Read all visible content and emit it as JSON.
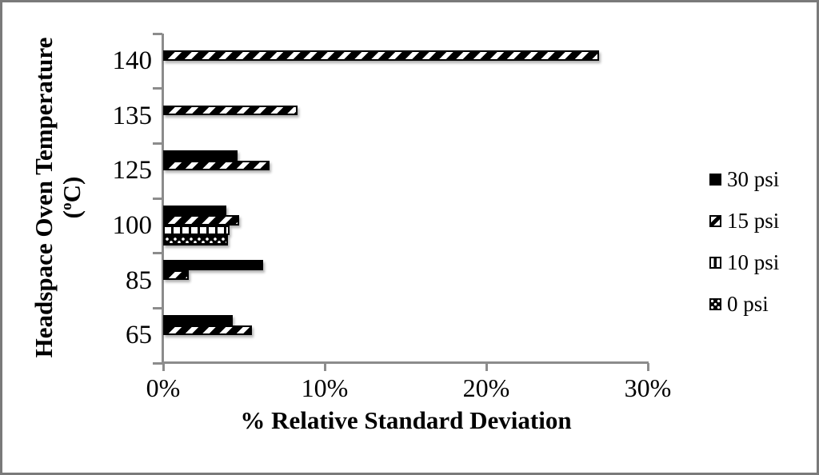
{
  "chart_data": {
    "type": "bar",
    "orientation": "horizontal",
    "title": "",
    "xlabel": "% Relative Standard Deviation",
    "ylabel": "Headspace Oven Temperature (oC)",
    "ylabel_line1": "Headspace Oven Temperature",
    "ylabel_unit": {
      "open": "(",
      "sup": "o",
      "close": "C)"
    },
    "categories": [
      "140",
      "135",
      "125",
      "100",
      "85",
      "65"
    ],
    "series": [
      {
        "name": "30 psi",
        "pattern": "solid",
        "values": [
          0,
          0,
          4.6,
          3.9,
          6.2,
          4.3
        ]
      },
      {
        "name": "15 psi",
        "pattern": "diagonal",
        "values": [
          27.0,
          8.3,
          6.6,
          4.7,
          1.6,
          5.5
        ]
      },
      {
        "name": "10 psi",
        "pattern": "vertical",
        "values": [
          0,
          0,
          0,
          4.1,
          0,
          0
        ]
      },
      {
        "name": "0 psi",
        "pattern": "dots",
        "values": [
          0,
          0,
          0,
          4.0,
          0,
          0
        ]
      }
    ],
    "x_ticks": [
      {
        "label": "0%",
        "value": 0
      },
      {
        "label": "10%",
        "value": 10
      },
      {
        "label": "20%",
        "value": 20
      },
      {
        "label": "30%",
        "value": 30
      }
    ],
    "xlim": [
      0,
      30
    ],
    "grid": false,
    "legend_position": "right",
    "colors": {
      "bar": "#000000",
      "axis": "#8c8c8c",
      "background": "#ffffff",
      "frame": "#7a7a7a"
    }
  }
}
